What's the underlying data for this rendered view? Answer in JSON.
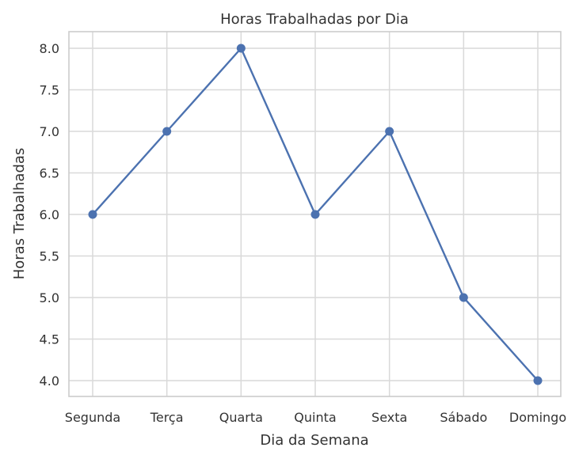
{
  "chart_data": {
    "type": "line",
    "title": "Horas Trabalhadas por Dia",
    "xlabel": "Dia da Semana",
    "ylabel": "Horas Trabalhadas",
    "categories": [
      "Segunda",
      "Terça",
      "Quarta",
      "Quinta",
      "Sexta",
      "Sábado",
      "Domingo"
    ],
    "series": [
      {
        "values": [
          6.0,
          7.0,
          8.0,
          6.0,
          7.0,
          5.0,
          4.0
        ],
        "color": "#4c72b0"
      }
    ],
    "y_ticks": [
      "4.0",
      "4.5",
      "5.0",
      "5.5",
      "6.0",
      "6.5",
      "7.0",
      "7.5",
      "8.0"
    ],
    "ylim": [
      3.8,
      8.2
    ],
    "grid": true,
    "marker": "circle"
  }
}
